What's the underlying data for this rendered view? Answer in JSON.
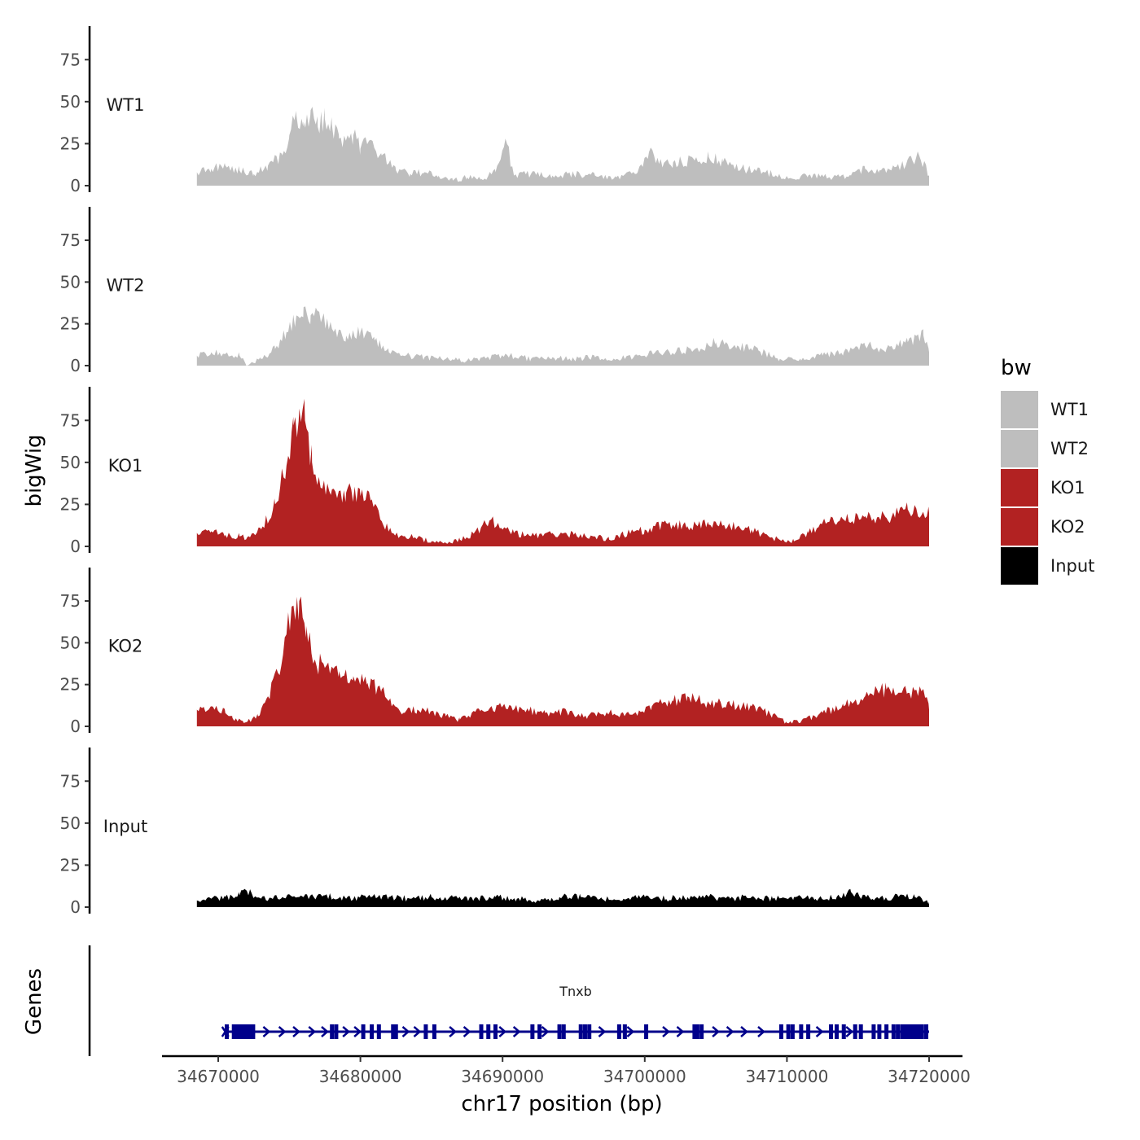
{
  "chart_data": {
    "type": "area",
    "title": "",
    "ylabel": "bigWig",
    "xlabel": "chr17 position (bp)",
    "genes_label": "Genes",
    "xlim": [
      34664000,
      34720000
    ],
    "data_range": [
      34668500,
      34720000
    ],
    "ylim": [
      0,
      95
    ],
    "y_ticks": [
      0,
      25,
      50,
      75
    ],
    "y_tick_labels": [
      "0",
      "25",
      "50",
      "75"
    ],
    "x_ticks": [
      34670000,
      34680000,
      34690000,
      34700000,
      34710000,
      34720000
    ],
    "x_tick_labels": [
      "34670000",
      "34680000",
      "34690000",
      "34700000",
      "34710000",
      "34720000"
    ],
    "legend": {
      "title": "bw",
      "entries": [
        {
          "label": "WT1",
          "color": "#BEBEBE"
        },
        {
          "label": "WT2",
          "color": "#BEBEBE"
        },
        {
          "label": "KO1",
          "color": "#B22222"
        },
        {
          "label": "KO2",
          "color": "#B22222"
        },
        {
          "label": "Input",
          "color": "#000000"
        }
      ]
    },
    "series": [
      {
        "name": "WT1",
        "color": "#BEBEBE",
        "x": [
          34668500,
          34669500,
          34670500,
          34671500,
          34672500,
          34673500,
          34674500,
          34675000,
          34675500,
          34676000,
          34676500,
          34677000,
          34677500,
          34678000,
          34678500,
          34679500,
          34680000,
          34680500,
          34681500,
          34682500,
          34683500,
          34684500,
          34685500,
          34686500,
          34687500,
          34688500,
          34689500,
          34690200,
          34690800,
          34692000,
          34693500,
          34695000,
          34696500,
          34698000,
          34699500,
          34700300,
          34701000,
          34702000,
          34703500,
          34704500,
          34705500,
          34707000,
          34708500,
          34709500,
          34710500,
          34711500,
          34713000,
          34714500,
          34715500,
          34716500,
          34718000,
          34719300,
          34720000
        ],
        "values": [
          8,
          10,
          12,
          9,
          7,
          12,
          18,
          30,
          42,
          38,
          45,
          35,
          40,
          36,
          28,
          30,
          22,
          25,
          18,
          9,
          7,
          8,
          6,
          3,
          5,
          4,
          8,
          28,
          6,
          7,
          6,
          7,
          6,
          5,
          8,
          20,
          13,
          14,
          15,
          17,
          14,
          10,
          8,
          6,
          4,
          6,
          5,
          6,
          10,
          9,
          11,
          18,
          6
        ]
      },
      {
        "name": "WT2",
        "color": "#BEBEBE",
        "x": [
          34668500,
          34669500,
          34670500,
          34671500,
          34672000,
          34673000,
          34674000,
          34674800,
          34675500,
          34676000,
          34676500,
          34677300,
          34678000,
          34679000,
          34680000,
          34681000,
          34682000,
          34683000,
          34684500,
          34686000,
          34687500,
          34689000,
          34690500,
          34692000,
          34693500,
          34695000,
          34696500,
          34698000,
          34699500,
          34701000,
          34702500,
          34704000,
          34705000,
          34706500,
          34708000,
          34709500,
          34711000,
          34712500,
          34714000,
          34715500,
          34717000,
          34718500,
          34719600,
          34720000
        ],
        "values": [
          6,
          8,
          7,
          6,
          0,
          4,
          10,
          20,
          30,
          35,
          30,
          28,
          22,
          18,
          20,
          15,
          8,
          6,
          5,
          4,
          3,
          5,
          6,
          4,
          5,
          4,
          5,
          4,
          6,
          8,
          9,
          10,
          14,
          12,
          9,
          4,
          3,
          6,
          8,
          12,
          10,
          14,
          18,
          8
        ]
      },
      {
        "name": "KO1",
        "color": "#B22222",
        "x": [
          34668500,
          34669500,
          34670500,
          34671500,
          34672000,
          34673000,
          34674000,
          34674800,
          34675300,
          34675700,
          34676100,
          34676600,
          34677200,
          34678000,
          34679000,
          34680000,
          34680800,
          34681500,
          34682200,
          34683000,
          34684000,
          34685000,
          34686000,
          34687000,
          34688000,
          34689200,
          34690000,
          34690800,
          34692000,
          34693500,
          34695000,
          34696500,
          34697500,
          34698500,
          34700000,
          34701500,
          34703000,
          34704500,
          34706000,
          34707500,
          34709000,
          34710500,
          34711500,
          34712500,
          34714000,
          34715500,
          34717000,
          34718500,
          34719600,
          34720000
        ],
        "values": [
          8,
          9,
          7,
          6,
          5,
          10,
          25,
          48,
          72,
          82,
          75,
          50,
          35,
          34,
          32,
          30,
          28,
          15,
          8,
          6,
          5,
          3,
          2,
          4,
          8,
          16,
          10,
          8,
          6,
          8,
          7,
          6,
          4,
          7,
          10,
          14,
          12,
          13,
          12,
          10,
          5,
          3,
          8,
          14,
          16,
          18,
          17,
          22,
          20,
          20
        ]
      },
      {
        "name": "KO2",
        "color": "#B22222",
        "x": [
          34668500,
          34669500,
          34670500,
          34671000,
          34671800,
          34672800,
          34673500,
          34674200,
          34674800,
          34675300,
          34675700,
          34676200,
          34676800,
          34677500,
          34678500,
          34679500,
          34680500,
          34681500,
          34682200,
          34683000,
          34684000,
          34685000,
          34686000,
          34687000,
          34688500,
          34690000,
          34691500,
          34693000,
          34694500,
          34696000,
          34697500,
          34699000,
          34700500,
          34702000,
          34703000,
          34704500,
          34706000,
          34707500,
          34709000,
          34710000,
          34711000,
          34712500,
          34714000,
          34715500,
          34717000,
          34718500,
          34719600,
          34720000
        ],
        "values": [
          10,
          12,
          8,
          5,
          2,
          6,
          18,
          32,
          55,
          72,
          75,
          60,
          40,
          35,
          33,
          30,
          26,
          22,
          12,
          8,
          10,
          9,
          6,
          4,
          10,
          12,
          10,
          8,
          9,
          6,
          8,
          7,
          12,
          15,
          18,
          14,
          13,
          12,
          7,
          2,
          3,
          8,
          12,
          18,
          22,
          20,
          22,
          10
        ]
      },
      {
        "name": "Input",
        "color": "#000000",
        "x": [
          34668500,
          34669500,
          34670500,
          34671500,
          34672000,
          34673000,
          34674500,
          34676000,
          34677500,
          34679000,
          34680500,
          34682000,
          34683500,
          34685000,
          34686500,
          34688000,
          34689500,
          34691000,
          34692500,
          34694000,
          34695500,
          34697000,
          34698500,
          34700000,
          34701500,
          34703000,
          34704500,
          34706000,
          34707500,
          34709000,
          34710500,
          34712000,
          34713500,
          34714500,
          34716000,
          34717500,
          34719000,
          34720000
        ],
        "values": [
          4,
          5,
          6,
          7,
          10,
          5,
          6,
          6,
          7,
          5,
          6,
          6,
          5,
          6,
          6,
          5,
          6,
          5,
          4,
          6,
          6,
          5,
          5,
          6,
          5,
          6,
          6,
          5,
          6,
          5,
          6,
          5,
          6,
          9,
          5,
          6,
          6,
          3
        ]
      }
    ],
    "gene": {
      "name": "Tnxb",
      "color": "#00008B",
      "start": 34670500,
      "end": 34720000,
      "exons": [
        34670600,
        34671100,
        34671600,
        34672200,
        34678000,
        34678300,
        34680200,
        34680800,
        34681300,
        34682300,
        34682500,
        34684600,
        34685200,
        34688500,
        34689000,
        34689500,
        34692100,
        34692600,
        34694000,
        34694300,
        34695500,
        34695800,
        34696100,
        34698200,
        34698600,
        34700100,
        34703500,
        34703700,
        34704000,
        34709600,
        34710100,
        34710400,
        34711000,
        34711500,
        34713100,
        34713500,
        34714000,
        34714800,
        34715200,
        34716100,
        34716500,
        34717000,
        34717500,
        34717800,
        34718100,
        34718300,
        34718500,
        34718700,
        34718900,
        34719100,
        34719300,
        34719500,
        34719800
      ],
      "big_exon": [
        34671000,
        34672600
      ],
      "arrows": [
        34673400,
        34674500,
        34675500,
        34676600,
        34677500,
        34679000,
        34679800,
        34683200,
        34684000,
        34686500,
        34687500,
        34690000,
        34691000,
        34693000,
        34697000,
        34699000,
        34701500,
        34702500,
        34705000,
        34706000,
        34707000,
        34708200,
        34712300,
        34714400
      ]
    }
  }
}
